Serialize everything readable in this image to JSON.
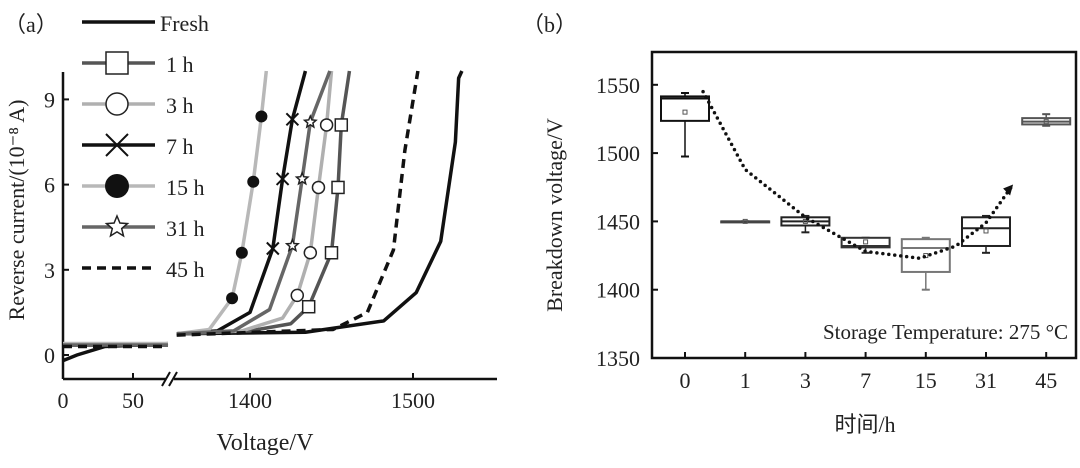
{
  "chart_data": [
    {
      "panel_label": "（a）",
      "type": "line",
      "xlabel": "Voltage/V",
      "ylabel": "Reverse current/(10⁻⁸ A)",
      "x_axis_break": true,
      "x_segments": [
        {
          "range": [
            0,
            75
          ],
          "ticks": [
            "0",
            "50"
          ]
        },
        {
          "range": [
            1354,
            1551
          ],
          "ticks": [
            "1400",
            "1500"
          ]
        }
      ],
      "ylim": [
        -1.2,
        10
      ],
      "yticks": [
        "0",
        "3",
        "6",
        "9"
      ],
      "legend_position": "top-left",
      "series": [
        {
          "name": "Fresh",
          "color": "#111111",
          "dash": false,
          "marker": "none",
          "low": [
            [
              0,
              -0.2
            ],
            [
              10,
              0.0
            ],
            [
              30,
              0.3
            ],
            [
              75,
              0.4
            ]
          ],
          "high": [
            [
              1355,
              0.75
            ],
            [
              1434,
              0.8
            ],
            [
              1482,
              1.2
            ],
            [
              1502,
              2.2
            ],
            [
              1517,
              4.0
            ],
            [
              1526,
              7.5
            ],
            [
              1528,
              9.75
            ],
            [
              1530,
              10
            ]
          ]
        },
        {
          "name": "1 h",
          "color": "#555555",
          "dash": false,
          "marker": "square",
          "low": [
            [
              0,
              0.35
            ],
            [
              75,
              0.35
            ]
          ],
          "high": [
            [
              1355,
              0.75
            ],
            [
              1400,
              0.85
            ],
            [
              1425,
              1.1
            ],
            [
              1436,
              1.7
            ],
            [
              1450,
              3.6
            ],
            [
              1454,
              5.9
            ],
            [
              1456,
              8.1
            ],
            [
              1461,
              10
            ]
          ],
          "markers": [
            [
              1436,
              1.7
            ],
            [
              1450,
              3.6
            ],
            [
              1454,
              5.9
            ],
            [
              1456,
              8.1
            ]
          ]
        },
        {
          "name": "3 h",
          "color": "#b0b0b0",
          "dash": false,
          "marker": "circle-open",
          "low": [
            [
              0,
              0.4
            ],
            [
              75,
              0.4
            ]
          ],
          "high": [
            [
              1355,
              0.75
            ],
            [
              1395,
              0.85
            ],
            [
              1420,
              1.3
            ],
            [
              1429,
              2.1
            ],
            [
              1437,
              3.6
            ],
            [
              1442,
              5.9
            ],
            [
              1447,
              8.1
            ],
            [
              1450,
              10
            ]
          ],
          "markers": [
            [
              1429,
              2.1
            ],
            [
              1437,
              3.6
            ],
            [
              1442,
              5.9
            ],
            [
              1447,
              8.1
            ]
          ]
        },
        {
          "name": "7 h",
          "color": "#111111",
          "dash": false,
          "marker": "cross",
          "low": [
            [
              0,
              0.35
            ],
            [
              75,
              0.35
            ]
          ],
          "high": [
            [
              1355,
              0.75
            ],
            [
              1380,
              0.85
            ],
            [
              1400,
              1.5
            ],
            [
              1414,
              3.75
            ],
            [
              1420,
              6.2
            ],
            [
              1426,
              8.3
            ],
            [
              1434,
              10
            ]
          ],
          "markers": [
            [
              1414,
              3.75
            ],
            [
              1420,
              6.2
            ],
            [
              1426,
              8.3
            ]
          ]
        },
        {
          "name": "15 h",
          "color": "#b8b8b8",
          "dash": false,
          "marker": "circle-filled",
          "low": [
            [
              0,
              0.4
            ],
            [
              75,
              0.4
            ]
          ],
          "high": [
            [
              1355,
              0.75
            ],
            [
              1375,
              0.9
            ],
            [
              1389,
              2.0
            ],
            [
              1395,
              3.6
            ],
            [
              1402,
              6.1
            ],
            [
              1407,
              8.4
            ],
            [
              1410,
              10
            ]
          ],
          "markers": [
            [
              1389,
              2.0
            ],
            [
              1395,
              3.6
            ],
            [
              1402,
              6.1
            ],
            [
              1407,
              8.4
            ]
          ]
        },
        {
          "name": "31 h",
          "color": "#666666",
          "dash": false,
          "marker": "star",
          "low": [
            [
              0,
              0.35
            ],
            [
              75,
              0.35
            ]
          ],
          "high": [
            [
              1355,
              0.75
            ],
            [
              1390,
              0.85
            ],
            [
              1412,
              1.6
            ],
            [
              1426,
              3.85
            ],
            [
              1432,
              6.2
            ],
            [
              1437,
              8.2
            ],
            [
              1449,
              10
            ]
          ],
          "markers": [
            [
              1426,
              3.85
            ],
            [
              1432,
              6.2
            ],
            [
              1437,
              8.2
            ]
          ]
        },
        {
          "name": "45 h",
          "color": "#111111",
          "dash": true,
          "marker": "none",
          "low": [
            [
              0,
              0.3
            ],
            [
              75,
              0.3
            ]
          ],
          "high": [
            [
              1355,
              0.7
            ],
            [
              1451,
              0.9
            ],
            [
              1472,
              1.5
            ],
            [
              1488,
              3.7
            ],
            [
              1495,
              7.2
            ],
            [
              1503,
              10
            ]
          ]
        }
      ]
    },
    {
      "panel_label": "（b）",
      "type": "box",
      "xlabel": "时间/h",
      "ylabel": "Breakdown voltage/V",
      "categories": [
        "0",
        "1",
        "3",
        "7",
        "15",
        "31",
        "45"
      ],
      "ylim": [
        1350,
        1575
      ],
      "yticks": [
        "1350",
        "1400",
        "1450",
        "1500",
        "1550"
      ],
      "annotation": "Storage Temperature: 275 °C",
      "boxes": [
        {
          "min": 1497.5,
          "q1": 1523.6,
          "median": 1540,
          "q3": 1541.5,
          "max": 1544,
          "mean": 1530
        },
        {
          "min": 1450,
          "q1": 1450,
          "median": 1450,
          "q3": 1450,
          "max": 1450,
          "mean": 1450
        },
        {
          "min": 1442,
          "q1": 1447,
          "median": 1450,
          "q3": 1453,
          "max": 1454,
          "mean": 1450
        },
        {
          "min": 1427,
          "q1": 1431,
          "median": 1432,
          "q3": 1438,
          "max": 1438,
          "mean": 1435
        },
        {
          "min": 1400,
          "q1": 1413,
          "median": 1430.5,
          "q3": 1437,
          "max": 1438,
          "mean": 1425
        },
        {
          "min": 1427,
          "q1": 1432,
          "median": 1445,
          "q3": 1453,
          "max": 1454,
          "mean": 1443
        },
        {
          "min": 1520,
          "q1": 1521,
          "median": 1523,
          "q3": 1525.6,
          "max": 1528.5,
          "mean": 1523
        }
      ],
      "trend": [
        [
          0.3,
          1545
        ],
        [
          1,
          1488
        ],
        [
          2,
          1453
        ],
        [
          3,
          1428
        ],
        [
          3.9,
          1423
        ],
        [
          4.5,
          1432
        ],
        [
          5,
          1449
        ],
        [
          5.45,
          1477
        ]
      ],
      "trend_style": "dotted with arrow"
    }
  ]
}
